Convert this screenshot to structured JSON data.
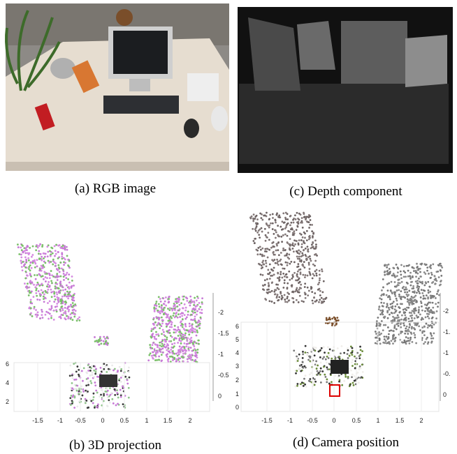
{
  "figure": {
    "panels": [
      {
        "caption": "(a) RGB image"
      },
      {
        "caption": "(c) Depth component"
      },
      {
        "caption": "(b) 3D projection",
        "x_ticks": [
          "-1.5",
          "-1",
          "-0.5",
          "0",
          "0.5",
          "1",
          "1.5",
          "2"
        ],
        "left_ticks": [
          "6",
          "4",
          "2"
        ],
        "right_ticks": [
          "-2",
          "-1.5",
          "-1",
          "-0.5",
          "0"
        ]
      },
      {
        "caption": "(d) Camera position",
        "x_ticks": [
          "-1.5",
          "-1",
          "-0.5",
          "0",
          "0.5",
          "1",
          "1.5",
          "2"
        ],
        "left_ticks": [
          "6",
          "5",
          "4",
          "3",
          "2",
          "1",
          "0"
        ],
        "right_ticks": [
          "-2",
          "-1.",
          "-1",
          "-0.",
          "0"
        ]
      }
    ]
  }
}
